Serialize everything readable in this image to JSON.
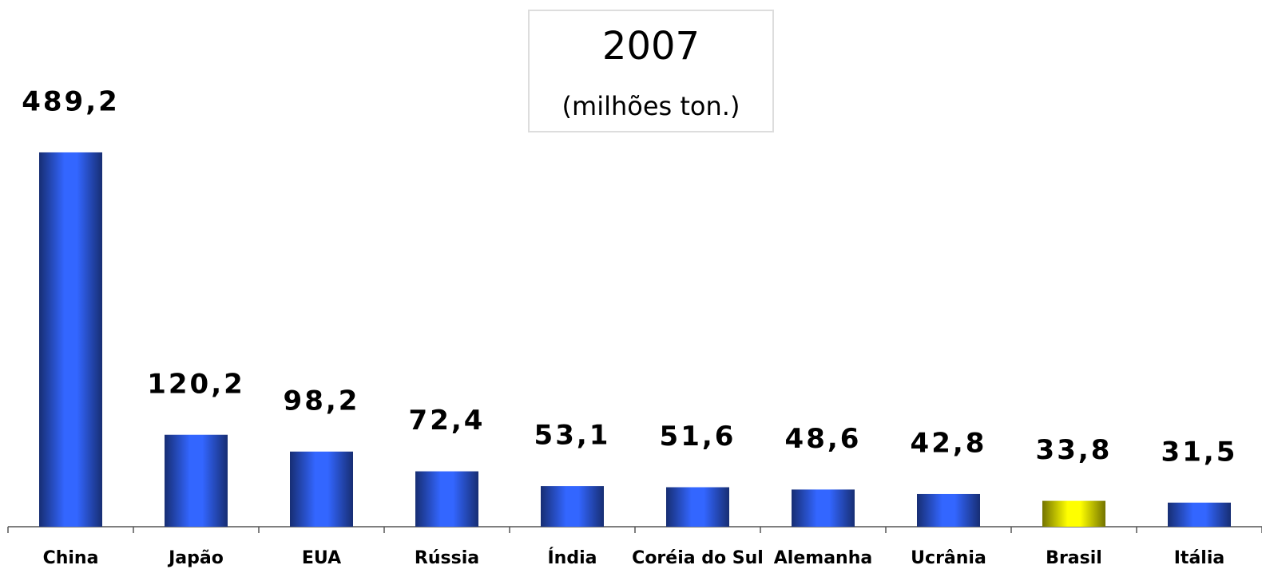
{
  "chart_data": {
    "type": "bar",
    "title": "2007",
    "subtitle": "(milhões ton.)",
    "categories": [
      "China",
      "Japão",
      "EUA",
      "Rússia",
      "Índia",
      "Coréia do Sul",
      "Alemanha",
      "Ucrânia",
      "Brasil",
      "Itália"
    ],
    "values": [
      489.2,
      120.2,
      98.2,
      72.4,
      53.1,
      51.6,
      48.6,
      42.8,
      33.8,
      31.5
    ],
    "value_labels": [
      "489,2",
      "120,2",
      "98,2",
      "72,4",
      "53,1",
      "51,6",
      "48,6",
      "42,8",
      "33,8",
      "31,5"
    ],
    "colors": [
      "#3366ff",
      "#3366ff",
      "#3366ff",
      "#3366ff",
      "#3366ff",
      "#3366ff",
      "#3366ff",
      "#3366ff",
      "#ffff00",
      "#3366ff"
    ],
    "ylim": [
      0,
      500
    ]
  }
}
